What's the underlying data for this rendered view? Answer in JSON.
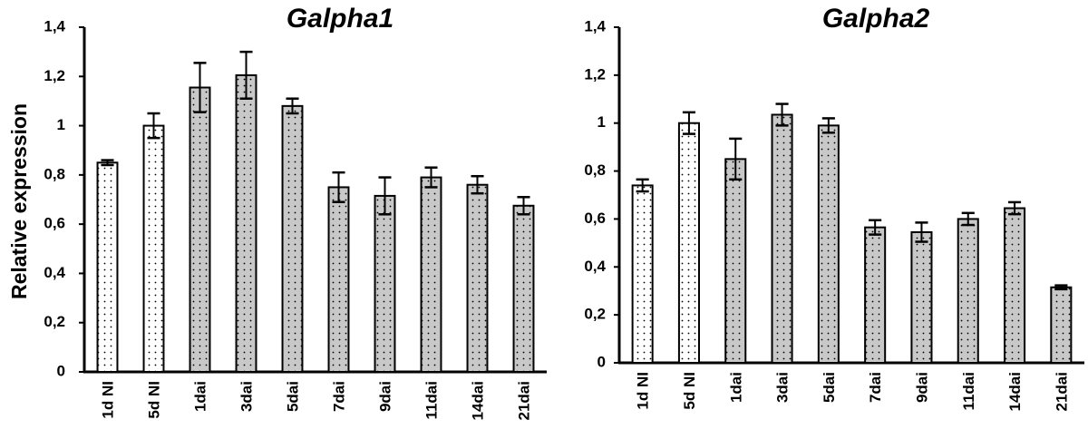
{
  "chart_data": [
    {
      "type": "bar",
      "title": "Galpha1",
      "ylabel": "Relative expression",
      "xlabel": "",
      "ylim": [
        0,
        1.4
      ],
      "yticks": [
        "0",
        "0,2",
        "0,4",
        "0,6",
        "0,8",
        "1",
        "1,2",
        "1,4"
      ],
      "categories": [
        "1d NI",
        "5d NI",
        "1dai",
        "3dai",
        "5dai",
        "7dai",
        "9dai",
        "11dai",
        "14dai",
        "21dai"
      ],
      "values": [
        0.85,
        1.0,
        1.155,
        1.205,
        1.08,
        0.75,
        0.715,
        0.79,
        0.76,
        0.675
      ],
      "errors": [
        0.01,
        0.05,
        0.1,
        0.095,
        0.03,
        0.06,
        0.075,
        0.04,
        0.035,
        0.035
      ],
      "fills": [
        "white-dotted",
        "white-dotted",
        "grey-dotted",
        "grey-dotted",
        "grey-dotted",
        "grey-dotted",
        "grey-dotted",
        "grey-dotted",
        "grey-dotted",
        "grey-dotted"
      ]
    },
    {
      "type": "bar",
      "title": "Galpha2",
      "ylabel": "",
      "xlabel": "",
      "ylim": [
        0,
        1.4
      ],
      "yticks": [
        "0",
        "0,2",
        "0,4",
        "0,6",
        "0,8",
        "1",
        "1,2",
        "1,4"
      ],
      "categories": [
        "1d NI",
        "5d NI",
        "1dai",
        "3dai",
        "5dai",
        "7dai",
        "9dai",
        "11dai",
        "14dai",
        "21dai"
      ],
      "values": [
        0.74,
        1.0,
        0.85,
        1.035,
        0.99,
        0.565,
        0.545,
        0.6,
        0.645,
        0.315
      ],
      "errors": [
        0.025,
        0.045,
        0.085,
        0.045,
        0.03,
        0.03,
        0.04,
        0.025,
        0.025,
        0.008
      ],
      "fills": [
        "white-dotted",
        "white-dotted",
        "grey-dotted",
        "grey-dotted",
        "grey-dotted",
        "grey-dotted",
        "grey-dotted",
        "grey-dotted",
        "grey-dotted",
        "grey-dotted"
      ]
    }
  ],
  "colors": {
    "grey_fill": "#c8c8c8",
    "white_fill": "#ffffff",
    "ink": "#000000"
  }
}
